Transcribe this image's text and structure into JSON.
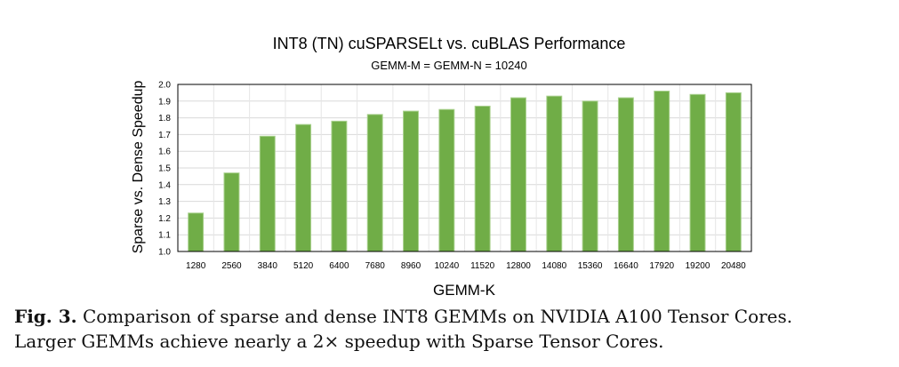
{
  "chart_data": {
    "type": "bar",
    "title": "INT8 (TN) cuSPARSELt vs. cuBLAS Performance",
    "subtitle": "GEMM-M = GEMM-N = 10240",
    "xlabel": "GEMM-K",
    "ylabel": "Sparse vs. Dense Speedup",
    "categories": [
      "1280",
      "2560",
      "3840",
      "5120",
      "6400",
      "7680",
      "8960",
      "10240",
      "11520",
      "12800",
      "14080",
      "15360",
      "16640",
      "17920",
      "19200",
      "20480"
    ],
    "values": [
      1.23,
      1.47,
      1.69,
      1.76,
      1.78,
      1.82,
      1.84,
      1.85,
      1.87,
      1.92,
      1.93,
      1.9,
      1.92,
      1.96,
      1.94,
      1.95
    ],
    "ylim": [
      1.0,
      2.0
    ],
    "yticks": [
      "1.0",
      "1.1",
      "1.2",
      "1.3",
      "1.4",
      "1.5",
      "1.6",
      "1.7",
      "1.8",
      "1.9",
      "2.0"
    ],
    "grid": true,
    "bar_color": "#70ad47",
    "bar_edge_color": "#a9d18e"
  },
  "caption": {
    "label": "Fig. 3.",
    "line1": "Comparison of sparse and dense INT8 GEMMs on NVIDIA A100 Tensor Cores.",
    "line2": "Larger GEMMs achieve nearly a 2× speedup with Sparse Tensor Cores."
  }
}
